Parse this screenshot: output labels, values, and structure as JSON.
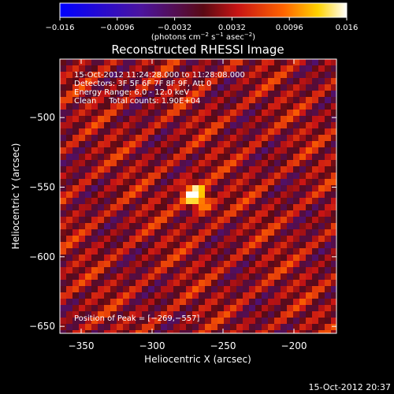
{
  "chart_data": {
    "type": "heatmap",
    "title": "Reconstructed RHESSI Image",
    "xlabel": "Heliocentric X (arcsec)",
    "ylabel": "Heliocentric Y (arcsec)",
    "x_ticks": [
      -350,
      -300,
      -250,
      -200
    ],
    "y_ticks": [
      -500,
      -550,
      -600,
      -650
    ],
    "x_tick_labels": [
      "−350",
      "−300",
      "−250",
      "−200"
    ],
    "y_tick_labels": [
      "−500",
      "−550",
      "−600",
      "−650"
    ],
    "xlim": [
      -365,
      -170
    ],
    "ylim": [
      -655,
      -458
    ],
    "colorbar": {
      "range": [
        -0.016,
        0.016
      ],
      "ticks": [
        -0.016,
        -0.0096,
        -0.0032,
        0.0032,
        0.0096,
        0.016
      ],
      "tick_labels": [
        "−0.016",
        "−0.0096",
        "−0.0032",
        "0.0032",
        "0.0096",
        "0.016"
      ],
      "units_parts": [
        "(photons cm",
        "−2",
        " s",
        "−1",
        " asec",
        "−2",
        ")"
      ]
    },
    "peak": {
      "x": -269,
      "y": -557
    },
    "annotations": [
      "15-Oct-2012 11:24:28.000 to 11:28:08.000",
      "Detectors: 3F 5F 6F 7F 8F 9F, Att 0",
      "Energy Range: 6.0 - 12.0 keV",
      "Clean     Total counts: 1.90E+04"
    ],
    "peak_label": "Position of Peak = [−269,−557]",
    "grid": false
  },
  "footer": {
    "timestamp": "15-Oct-2012 20:37"
  },
  "colors": {
    "background": "#000000",
    "text": "#ffffff"
  }
}
